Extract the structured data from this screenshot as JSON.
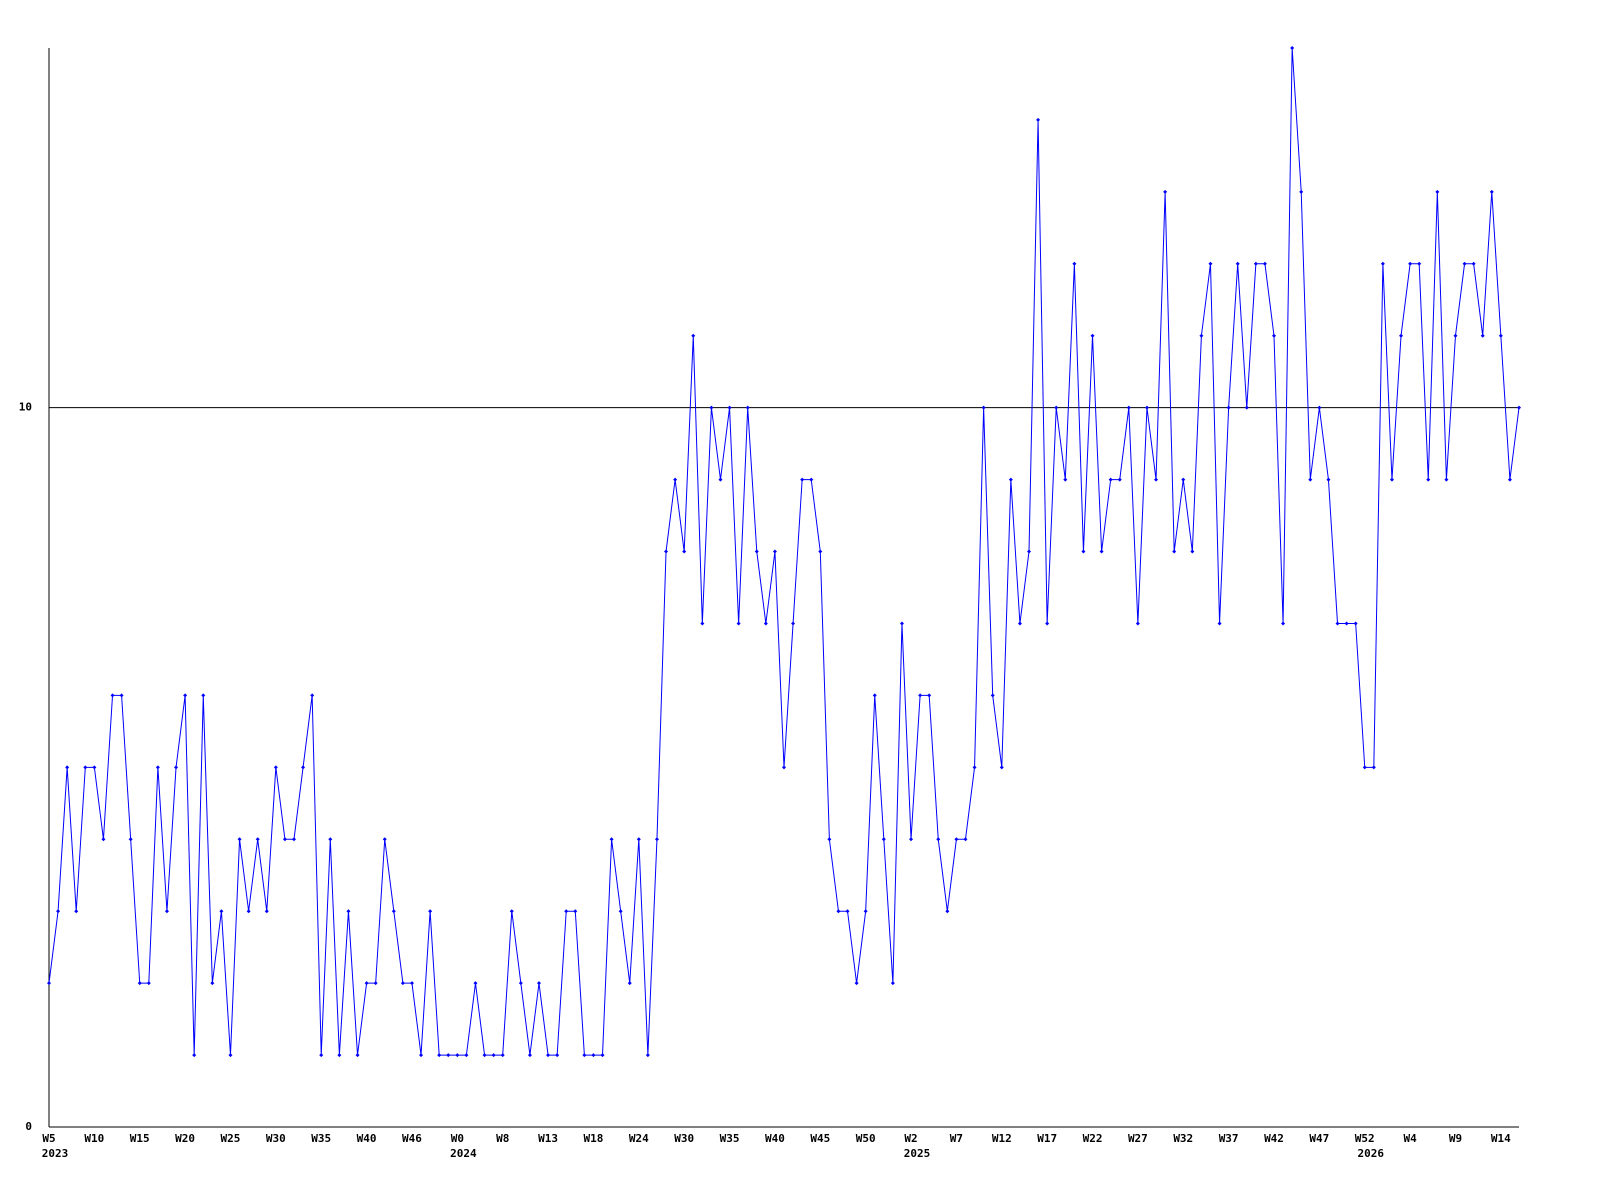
{
  "chart_data": {
    "type": "line",
    "categories": [
      "W5",
      null,
      null,
      null,
      null,
      "W10",
      null,
      null,
      null,
      null,
      "W15",
      null,
      null,
      null,
      null,
      "W20",
      null,
      null,
      null,
      null,
      "W25",
      null,
      null,
      null,
      null,
      "W30",
      null,
      null,
      null,
      null,
      "W35",
      null,
      null,
      null,
      null,
      "W40",
      null,
      null,
      null,
      null,
      "W46",
      null,
      null,
      null,
      null,
      "W0",
      null,
      null,
      null,
      null,
      "W8",
      null,
      null,
      null,
      null,
      "W13",
      null,
      null,
      null,
      null,
      "W18",
      null,
      null,
      null,
      null,
      "W24",
      null,
      null,
      null,
      null,
      "W30",
      null,
      null,
      null,
      null,
      "W35",
      null,
      null,
      null,
      null,
      "W40",
      null,
      null,
      null,
      null,
      "W45",
      null,
      null,
      null,
      null,
      "W50",
      null,
      null,
      null,
      null,
      "W2",
      null,
      null,
      null,
      null,
      "W7",
      null,
      null,
      null,
      null,
      "W12",
      null,
      null,
      null,
      null,
      "W17",
      null,
      null,
      null,
      null,
      "W22",
      null,
      null,
      null,
      null,
      "W27",
      null,
      null,
      null,
      null,
      "W32",
      null,
      null,
      null,
      null,
      "W37",
      null,
      null,
      null,
      null,
      "W42",
      null,
      null,
      null,
      null,
      "W47",
      null,
      null,
      null,
      null,
      "W52",
      null,
      null,
      null,
      null,
      "W4",
      null,
      null,
      null,
      null,
      "W9",
      null,
      null,
      null,
      null,
      "W14",
      null,
      null
    ],
    "year_labels": [
      {
        "index": 0,
        "label": "2023"
      },
      {
        "index": 45,
        "label": "2024"
      },
      {
        "index": 95,
        "label": "2025"
      },
      {
        "index": 145,
        "label": "2026"
      }
    ],
    "series": [
      {
        "color": "#0000ff",
        "values": [
          2,
          3,
          5,
          3,
          5,
          5,
          4,
          6,
          6,
          4,
          2,
          2,
          5,
          3,
          5,
          6,
          1,
          6,
          2,
          3,
          1,
          4,
          3,
          4,
          3,
          5,
          4,
          4,
          5,
          6,
          1,
          4,
          1,
          3,
          1,
          2,
          2,
          4,
          3,
          2,
          2,
          1,
          3,
          1,
          1,
          1,
          1,
          2,
          1,
          1,
          1,
          3,
          2,
          1,
          2,
          1,
          1,
          3,
          3,
          1,
          1,
          1,
          4,
          3,
          2,
          4,
          1,
          4,
          8,
          9,
          8,
          11,
          7,
          10,
          9,
          10,
          7,
          10,
          8,
          7,
          8,
          5,
          7,
          9,
          9,
          8,
          4,
          3,
          3,
          2,
          3,
          6,
          4,
          2,
          7,
          4,
          6,
          6,
          4,
          3,
          4,
          4,
          5,
          10,
          6,
          5,
          9,
          7,
          8,
          14,
          7,
          10,
          9,
          12,
          8,
          11,
          8,
          9,
          9,
          10,
          7,
          10,
          9,
          13,
          8,
          9,
          8,
          11,
          12,
          7,
          10,
          12,
          10,
          12,
          12,
          11,
          7,
          15,
          13,
          9,
          10,
          9,
          7,
          7,
          7,
          5,
          5,
          12,
          9,
          11,
          12,
          12,
          9,
          13,
          9,
          11,
          12,
          12,
          11,
          13,
          11,
          9,
          10
        ]
      }
    ],
    "ylim": [
      0,
      15
    ],
    "yticks": [
      0,
      10
    ],
    "grid": true
  }
}
